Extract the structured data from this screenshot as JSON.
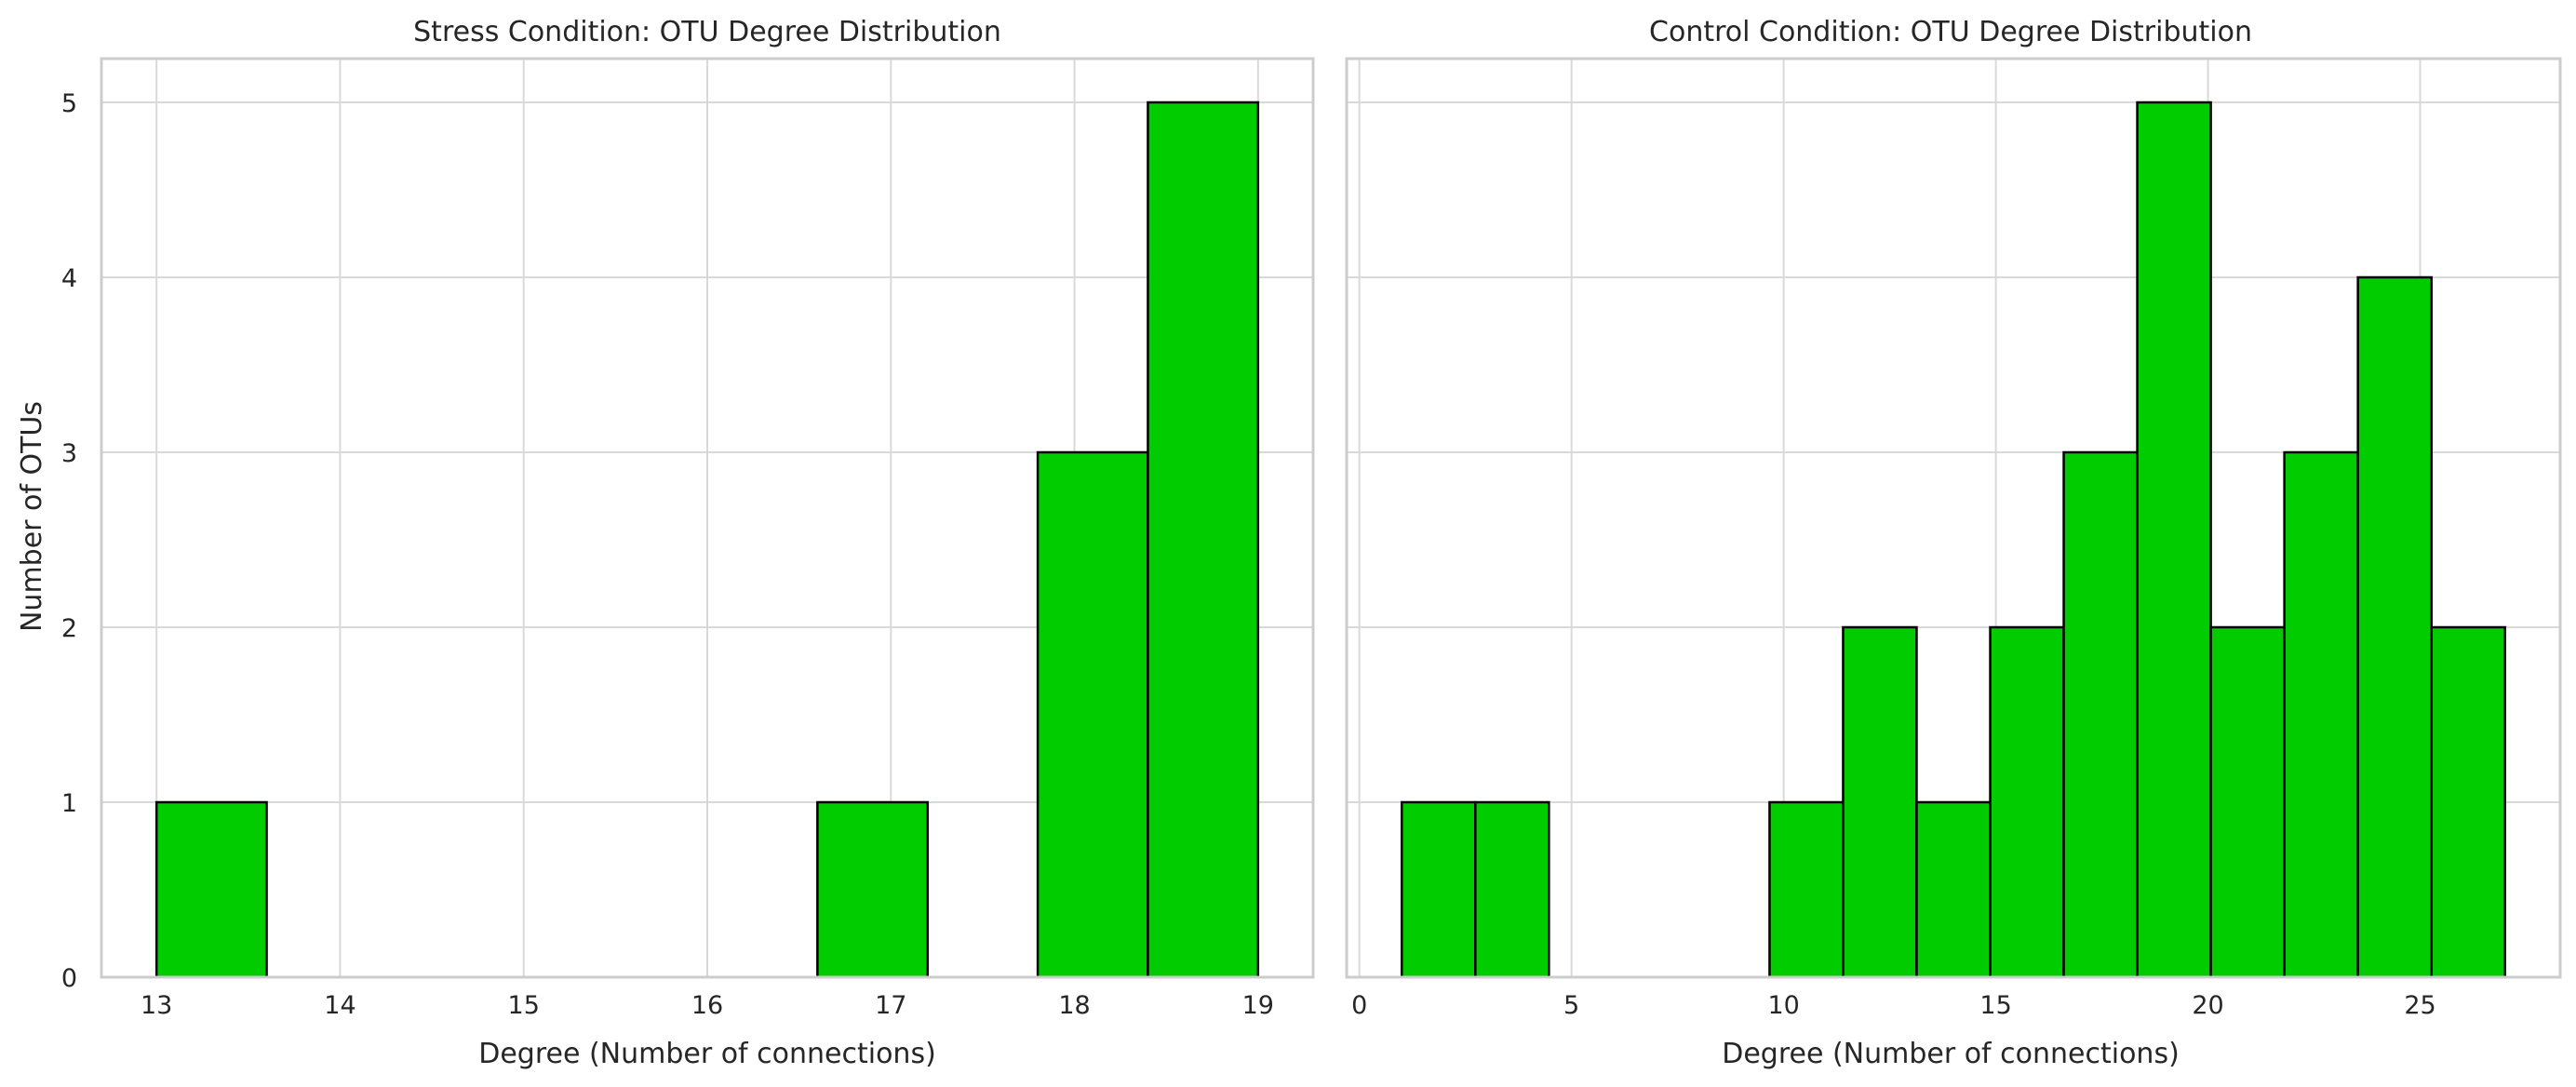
{
  "chart_data": [
    {
      "type": "bar",
      "title": "Stress Condition: OTU Degree Distribution",
      "xlabel": "Degree (Number of connections)",
      "ylabel": "Number of OTUs",
      "xlim": [
        12.7,
        19.3
      ],
      "ylim": [
        0,
        5.25
      ],
      "xticks": [
        13,
        14,
        15,
        16,
        17,
        18,
        19
      ],
      "yticks": [
        0,
        1,
        2,
        3,
        4,
        5
      ],
      "grid": true,
      "bar_color": "#00cc00",
      "edge_color": "#000000",
      "bins": [
        {
          "x0": 13.0,
          "x1": 13.6,
          "count": 1
        },
        {
          "x0": 13.6,
          "x1": 14.2,
          "count": 0
        },
        {
          "x0": 14.2,
          "x1": 14.8,
          "count": 0
        },
        {
          "x0": 14.8,
          "x1": 15.4,
          "count": 0
        },
        {
          "x0": 15.4,
          "x1": 16.0,
          "count": 0
        },
        {
          "x0": 16.0,
          "x1": 16.6,
          "count": 0
        },
        {
          "x0": 16.6,
          "x1": 17.2,
          "count": 1
        },
        {
          "x0": 17.2,
          "x1": 17.8,
          "count": 0
        },
        {
          "x0": 17.8,
          "x1": 18.4,
          "count": 3
        },
        {
          "x0": 18.4,
          "x1": 19.0,
          "count": 5
        }
      ]
    },
    {
      "type": "bar",
      "title": "Control Condition: OTU Degree Distribution",
      "xlabel": "Degree (Number of connections)",
      "ylabel": "",
      "xlim": [
        -0.3,
        28.3
      ],
      "ylim": [
        0,
        5.25
      ],
      "xticks": [
        0,
        5,
        10,
        15,
        20,
        25
      ],
      "yticks": [
        0,
        1,
        2,
        3,
        4,
        5
      ],
      "grid": true,
      "bar_color": "#00cc00",
      "edge_color": "#000000",
      "bins": [
        {
          "x0": 1.0,
          "x1": 2.733,
          "count": 1
        },
        {
          "x0": 2.733,
          "x1": 4.467,
          "count": 1
        },
        {
          "x0": 4.467,
          "x1": 6.2,
          "count": 0
        },
        {
          "x0": 6.2,
          "x1": 7.933,
          "count": 0
        },
        {
          "x0": 7.933,
          "x1": 9.667,
          "count": 0
        },
        {
          "x0": 9.667,
          "x1": 11.4,
          "count": 1
        },
        {
          "x0": 11.4,
          "x1": 13.133,
          "count": 2
        },
        {
          "x0": 13.133,
          "x1": 14.867,
          "count": 1
        },
        {
          "x0": 14.867,
          "x1": 16.6,
          "count": 2
        },
        {
          "x0": 16.6,
          "x1": 18.333,
          "count": 3
        },
        {
          "x0": 18.333,
          "x1": 20.067,
          "count": 5
        },
        {
          "x0": 20.067,
          "x1": 21.8,
          "count": 2
        },
        {
          "x0": 21.8,
          "x1": 23.533,
          "count": 3
        },
        {
          "x0": 23.533,
          "x1": 25.267,
          "count": 4
        },
        {
          "x0": 25.267,
          "x1": 27.0,
          "count": 2
        }
      ]
    }
  ]
}
